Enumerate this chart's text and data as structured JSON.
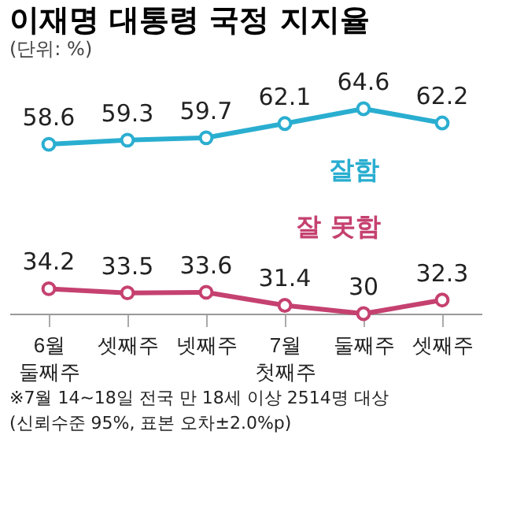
{
  "chart_data": {
    "type": "line",
    "title": "이재명 대통령 국정 지지율",
    "subtitle": "(단위: %)",
    "categories": [
      "6월 둘째주",
      "셋째주",
      "넷째주",
      "7월 첫째주",
      "둘째주",
      "셋째주"
    ],
    "series": [
      {
        "name": "잘함",
        "color": "#2aaed0",
        "values": [
          58.6,
          59.3,
          59.7,
          62.1,
          64.6,
          62.2
        ]
      },
      {
        "name": "잘 못함",
        "color": "#c5416f",
        "values": [
          34.2,
          33.5,
          33.6,
          31.4,
          30,
          32.3
        ]
      }
    ],
    "data_labels": true,
    "marker": "circle",
    "legend": false,
    "grid": false,
    "tick_labels": "x",
    "annotations": [
      "※7월 14~18일 전국 만 18세 이상 2514명 대상",
      "(신뢰수준 95%, 표본 오차±2.0%p)"
    ]
  }
}
